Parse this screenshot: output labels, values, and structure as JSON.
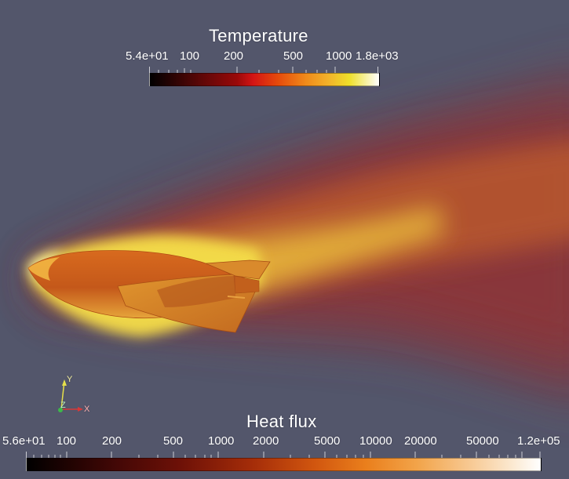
{
  "temperature_bar": {
    "title": "Temperature",
    "ticks": [
      "5.4e+01",
      "100",
      "200",
      "500",
      "1000",
      "1.8e+03"
    ]
  },
  "heat_flux_bar": {
    "title": "Heat flux",
    "ticks": [
      "5.6e+01",
      "100",
      "200",
      "500",
      "1000",
      "2000",
      "5000",
      "10000",
      "20000",
      "50000",
      "1.2e+05"
    ]
  },
  "axes": {
    "y": "Y",
    "z": "Z",
    "x": "X"
  },
  "colors": {
    "background": "#53566b",
    "plume_core": "#f0c23a",
    "plume_outer": "#8a3a3e",
    "vehicle": "#e07a22",
    "axis_y": "#e6e04a",
    "axis_z": "#3cb84a",
    "axis_x": "#d83838"
  }
}
